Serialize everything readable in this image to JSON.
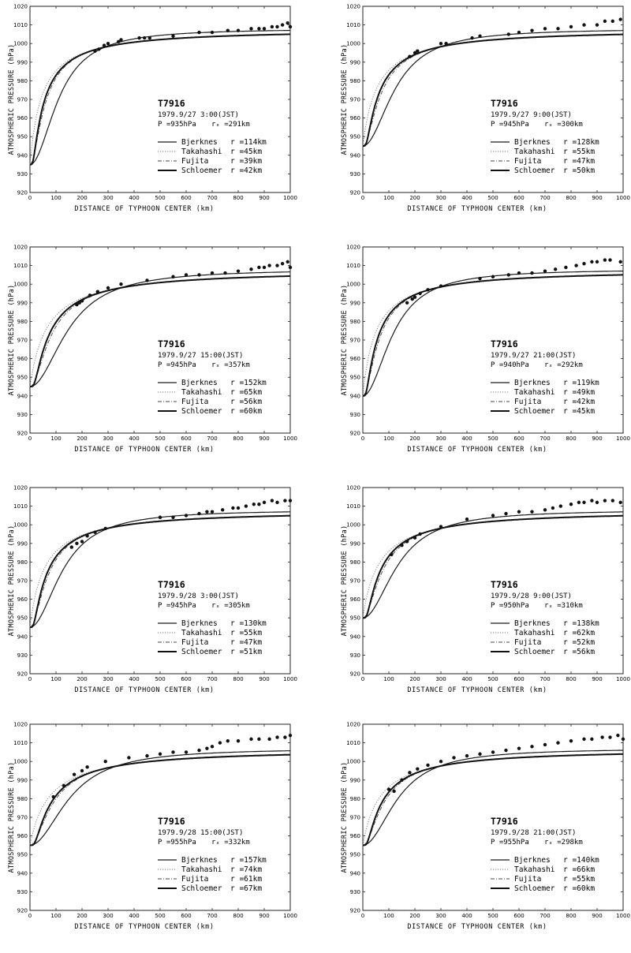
{
  "common": {
    "ylabel": "ATMOSPHERIC PRESSURE (hPa)",
    "xlabel": "DISTANCE OF TYPHOON CENTER (km)",
    "x_ticks": [
      "0",
      "100",
      "200",
      "300",
      "400",
      "500",
      "600",
      "700",
      "800",
      "900",
      "1000"
    ],
    "y_ticks": [
      "920",
      "930",
      "940",
      "950",
      "960",
      "970",
      "980",
      "990",
      "1000",
      "1010",
      "1020"
    ],
    "legend_names": [
      "Bjerknes",
      "Takahashi",
      "Fujita",
      "Schloemer"
    ]
  },
  "chart_data": [
    {
      "type": "scatter",
      "typhoon": "T7916",
      "datetime": "1979.9/27  3:00(JST)",
      "P_text": "P =935hPa",
      "r_text": "rₓ =291km",
      "xlim": [
        0,
        1000
      ],
      "ylim": [
        920,
        1020
      ],
      "pc": 935,
      "penv": 1008,
      "series": [
        {
          "name": "Bjerknes",
          "r_text": "r =114km",
          "r": 114,
          "style": "solid"
        },
        {
          "name": "Takahashi",
          "r_text": "r =45km",
          "r": 45,
          "style": "dotted"
        },
        {
          "name": "Fujita",
          "r_text": "r =39km",
          "r": 39,
          "style": "dashdot"
        },
        {
          "name": "Schloemer",
          "r_text": "r =42km",
          "r": 42,
          "style": "solid-thick"
        }
      ],
      "observations": [
        [
          250,
          996
        ],
        [
          265,
          997
        ],
        [
          285,
          999
        ],
        [
          300,
          1000
        ],
        [
          340,
          1001
        ],
        [
          350,
          1002
        ],
        [
          420,
          1003
        ],
        [
          440,
          1003
        ],
        [
          460,
          1003
        ],
        [
          550,
          1004
        ],
        [
          650,
          1006
        ],
        [
          700,
          1006
        ],
        [
          760,
          1007
        ],
        [
          800,
          1007
        ],
        [
          850,
          1008
        ],
        [
          880,
          1008
        ],
        [
          900,
          1008
        ],
        [
          930,
          1009
        ],
        [
          950,
          1009
        ],
        [
          970,
          1010
        ],
        [
          990,
          1011
        ],
        [
          1000,
          1009
        ]
      ]
    },
    {
      "type": "scatter",
      "typhoon": "T7916",
      "datetime": "1979.9/27  9:00(JST)",
      "P_text": "P =945hPa",
      "r_text": "rₓ =300km",
      "xlim": [
        0,
        1000
      ],
      "ylim": [
        920,
        1020
      ],
      "pc": 945,
      "penv": 1008,
      "series": [
        {
          "name": "Bjerknes",
          "r_text": "r =128km",
          "r": 128,
          "style": "solid"
        },
        {
          "name": "Takahashi",
          "r_text": "r =55km",
          "r": 55,
          "style": "dotted"
        },
        {
          "name": "Fujita",
          "r_text": "r =47km",
          "r": 47,
          "style": "dashdot"
        },
        {
          "name": "Schloemer",
          "r_text": "r =50km",
          "r": 50,
          "style": "solid-thick"
        }
      ],
      "observations": [
        [
          180,
          993
        ],
        [
          200,
          995
        ],
        [
          210,
          996
        ],
        [
          300,
          1000
        ],
        [
          320,
          1000
        ],
        [
          420,
          1003
        ],
        [
          450,
          1004
        ],
        [
          560,
          1005
        ],
        [
          600,
          1006
        ],
        [
          650,
          1007
        ],
        [
          700,
          1008
        ],
        [
          750,
          1008
        ],
        [
          800,
          1009
        ],
        [
          850,
          1010
        ],
        [
          900,
          1010
        ],
        [
          930,
          1012
        ],
        [
          960,
          1012
        ],
        [
          990,
          1013
        ]
      ]
    },
    {
      "type": "scatter",
      "typhoon": "T7916",
      "datetime": "1979.9/27 15:00(JST)",
      "P_text": "P =945hPa",
      "r_text": "rₓ =357km",
      "xlim": [
        0,
        1000
      ],
      "ylim": [
        920,
        1020
      ],
      "pc": 945,
      "penv": 1008,
      "series": [
        {
          "name": "Bjerknes",
          "r_text": "r =152km",
          "r": 152,
          "style": "solid"
        },
        {
          "name": "Takahashi",
          "r_text": "r =65km",
          "r": 65,
          "style": "dotted"
        },
        {
          "name": "Fujita",
          "r_text": "r =56km",
          "r": 56,
          "style": "dashdot"
        },
        {
          "name": "Schloemer",
          "r_text": "r =60km",
          "r": 60,
          "style": "solid-thick"
        }
      ],
      "observations": [
        [
          180,
          989
        ],
        [
          190,
          990
        ],
        [
          200,
          991
        ],
        [
          230,
          994
        ],
        [
          260,
          996
        ],
        [
          300,
          998
        ],
        [
          350,
          1000
        ],
        [
          450,
          1002
        ],
        [
          550,
          1004
        ],
        [
          600,
          1005
        ],
        [
          650,
          1005
        ],
        [
          700,
          1006
        ],
        [
          750,
          1006
        ],
        [
          800,
          1007
        ],
        [
          850,
          1008
        ],
        [
          880,
          1009
        ],
        [
          900,
          1009
        ],
        [
          920,
          1010
        ],
        [
          950,
          1010
        ],
        [
          970,
          1011
        ],
        [
          990,
          1012
        ],
        [
          1000,
          1009
        ]
      ]
    },
    {
      "type": "scatter",
      "typhoon": "T7916",
      "datetime": "1979.9/27 21:00(JST)",
      "P_text": "P =940hPa",
      "r_text": "rₓ =292km",
      "xlim": [
        0,
        1000
      ],
      "ylim": [
        920,
        1020
      ],
      "pc": 940,
      "penv": 1008,
      "series": [
        {
          "name": "Bjerknes",
          "r_text": "r =119km",
          "r": 119,
          "style": "solid"
        },
        {
          "name": "Takahashi",
          "r_text": "r =49km",
          "r": 49,
          "style": "dotted"
        },
        {
          "name": "Fujita",
          "r_text": "r =42km",
          "r": 42,
          "style": "dashdot"
        },
        {
          "name": "Schloemer",
          "r_text": "r =45km",
          "r": 45,
          "style": "solid-thick"
        }
      ],
      "observations": [
        [
          170,
          990
        ],
        [
          190,
          992
        ],
        [
          200,
          993
        ],
        [
          220,
          995
        ],
        [
          250,
          997
        ],
        [
          300,
          999
        ],
        [
          450,
          1003
        ],
        [
          500,
          1004
        ],
        [
          560,
          1005
        ],
        [
          600,
          1006
        ],
        [
          650,
          1006
        ],
        [
          700,
          1007
        ],
        [
          740,
          1008
        ],
        [
          780,
          1009
        ],
        [
          820,
          1010
        ],
        [
          850,
          1011
        ],
        [
          880,
          1012
        ],
        [
          900,
          1012
        ],
        [
          930,
          1013
        ],
        [
          950,
          1013
        ],
        [
          990,
          1012
        ]
      ]
    },
    {
      "type": "scatter",
      "typhoon": "T7916",
      "datetime": "1979.9/28  3:00(JST)",
      "P_text": "P =945hPa",
      "r_text": "rₓ =305km",
      "xlim": [
        0,
        1000
      ],
      "ylim": [
        920,
        1020
      ],
      "pc": 945,
      "penv": 1008,
      "series": [
        {
          "name": "Bjerknes",
          "r_text": "r =130km",
          "r": 130,
          "style": "solid"
        },
        {
          "name": "Takahashi",
          "r_text": "r =55km",
          "r": 55,
          "style": "dotted"
        },
        {
          "name": "Fujita",
          "r_text": "r =47km",
          "r": 47,
          "style": "dashdot"
        },
        {
          "name": "Schloemer",
          "r_text": "r =51km",
          "r": 51,
          "style": "solid-thick"
        }
      ],
      "observations": [
        [
          160,
          988
        ],
        [
          180,
          990
        ],
        [
          200,
          991
        ],
        [
          220,
          994
        ],
        [
          250,
          996
        ],
        [
          290,
          998
        ],
        [
          500,
          1004
        ],
        [
          550,
          1004
        ],
        [
          600,
          1005
        ],
        [
          650,
          1006
        ],
        [
          680,
          1007
        ],
        [
          700,
          1007
        ],
        [
          740,
          1008
        ],
        [
          780,
          1009
        ],
        [
          800,
          1009
        ],
        [
          830,
          1010
        ],
        [
          860,
          1011
        ],
        [
          880,
          1011
        ],
        [
          900,
          1012
        ],
        [
          930,
          1013
        ],
        [
          950,
          1012
        ],
        [
          980,
          1013
        ],
        [
          1000,
          1013
        ]
      ]
    },
    {
      "type": "scatter",
      "typhoon": "T7916",
      "datetime": "1979.9/28  9:00(JST)",
      "P_text": "P =950hPa",
      "r_text": "rₓ =310km",
      "xlim": [
        0,
        1000
      ],
      "ylim": [
        920,
        1020
      ],
      "pc": 950,
      "penv": 1008,
      "series": [
        {
          "name": "Bjerknes",
          "r_text": "r =138km",
          "r": 138,
          "style": "solid"
        },
        {
          "name": "Takahashi",
          "r_text": "r =62km",
          "r": 62,
          "style": "dotted"
        },
        {
          "name": "Fujita",
          "r_text": "r =52km",
          "r": 52,
          "style": "dashdot"
        },
        {
          "name": "Schloemer",
          "r_text": "r =56km",
          "r": 56,
          "style": "solid-thick"
        }
      ],
      "observations": [
        [
          110,
          984
        ],
        [
          150,
          989
        ],
        [
          170,
          991
        ],
        [
          200,
          993
        ],
        [
          220,
          995
        ],
        [
          300,
          999
        ],
        [
          400,
          1003
        ],
        [
          500,
          1005
        ],
        [
          550,
          1006
        ],
        [
          600,
          1007
        ],
        [
          650,
          1007
        ],
        [
          700,
          1008
        ],
        [
          730,
          1009
        ],
        [
          760,
          1010
        ],
        [
          800,
          1011
        ],
        [
          830,
          1012
        ],
        [
          850,
          1012
        ],
        [
          880,
          1013
        ],
        [
          900,
          1012
        ],
        [
          930,
          1013
        ],
        [
          960,
          1013
        ],
        [
          990,
          1012
        ]
      ]
    },
    {
      "type": "scatter",
      "typhoon": "T7916",
      "datetime": "1979.9/28 15:00(JST)",
      "P_text": "P =955hPa",
      "r_text": "rₓ =332km",
      "xlim": [
        0,
        1000
      ],
      "ylim": [
        920,
        1020
      ],
      "pc": 955,
      "penv": 1007,
      "series": [
        {
          "name": "Bjerknes",
          "r_text": "r =157km",
          "r": 157,
          "style": "solid"
        },
        {
          "name": "Takahashi",
          "r_text": "r =74km",
          "r": 74,
          "style": "dotted"
        },
        {
          "name": "Fujita",
          "r_text": "r =61km",
          "r": 61,
          "style": "dashdot"
        },
        {
          "name": "Schloemer",
          "r_text": "r =67km",
          "r": 67,
          "style": "solid-thick"
        }
      ],
      "observations": [
        [
          90,
          981
        ],
        [
          130,
          987
        ],
        [
          170,
          993
        ],
        [
          200,
          995
        ],
        [
          220,
          997
        ],
        [
          290,
          1000
        ],
        [
          380,
          1002
        ],
        [
          450,
          1003
        ],
        [
          500,
          1004
        ],
        [
          550,
          1005
        ],
        [
          600,
          1005
        ],
        [
          650,
          1006
        ],
        [
          680,
          1007
        ],
        [
          700,
          1008
        ],
        [
          730,
          1010
        ],
        [
          760,
          1011
        ],
        [
          800,
          1011
        ],
        [
          850,
          1012
        ],
        [
          880,
          1012
        ],
        [
          920,
          1012
        ],
        [
          950,
          1013
        ],
        [
          980,
          1013
        ],
        [
          1000,
          1014
        ]
      ]
    },
    {
      "type": "scatter",
      "typhoon": "T7916",
      "datetime": "1979.9/28 21:00(JST)",
      "P_text": "P =955hPa",
      "r_text": "rₓ =298km",
      "xlim": [
        0,
        1000
      ],
      "ylim": [
        920,
        1020
      ],
      "pc": 955,
      "penv": 1007,
      "series": [
        {
          "name": "Bjerknes",
          "r_text": "r =140km",
          "r": 140,
          "style": "solid"
        },
        {
          "name": "Takahashi",
          "r_text": "r =66km",
          "r": 66,
          "style": "dotted"
        },
        {
          "name": "Fujita",
          "r_text": "r =55km",
          "r": 55,
          "style": "dashdot"
        },
        {
          "name": "Schloemer",
          "r_text": "r =60km",
          "r": 60,
          "style": "solid-thick"
        }
      ],
      "observations": [
        [
          100,
          985
        ],
        [
          120,
          984
        ],
        [
          150,
          990
        ],
        [
          180,
          994
        ],
        [
          210,
          996
        ],
        [
          250,
          998
        ],
        [
          300,
          1000
        ],
        [
          350,
          1002
        ],
        [
          400,
          1003
        ],
        [
          450,
          1004
        ],
        [
          500,
          1005
        ],
        [
          550,
          1006
        ],
        [
          600,
          1007
        ],
        [
          650,
          1008
        ],
        [
          700,
          1009
        ],
        [
          750,
          1010
        ],
        [
          800,
          1011
        ],
        [
          850,
          1012
        ],
        [
          880,
          1012
        ],
        [
          920,
          1013
        ],
        [
          950,
          1013
        ],
        [
          980,
          1014
        ],
        [
          1000,
          1012
        ]
      ]
    }
  ]
}
